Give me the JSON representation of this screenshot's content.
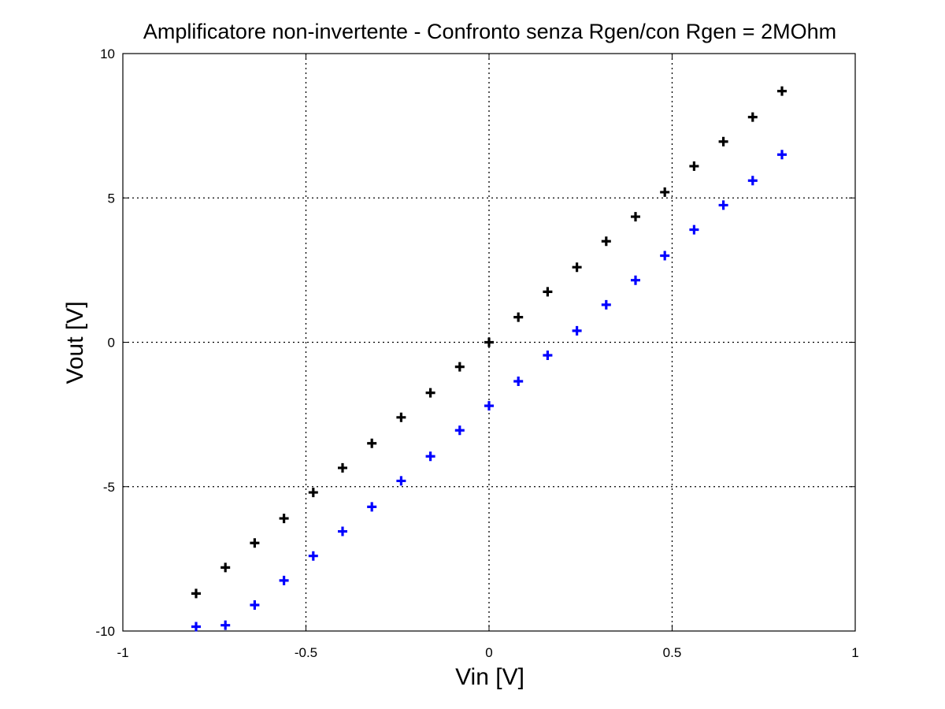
{
  "chart_data": {
    "type": "scatter",
    "title": "Amplificatore non-invertente - Confronto senza Rgen/con Rgen = 2MOhm",
    "xlabel": "Vin [V]",
    "ylabel": "Vout [V]",
    "xlim": [
      -1,
      1
    ],
    "ylim": [
      -10,
      10
    ],
    "xticks": [
      -1,
      -0.5,
      0,
      0.5,
      1
    ],
    "xtick_labels": [
      "-1",
      "-0.5",
      "0",
      "0.5",
      "1"
    ],
    "yticks": [
      -10,
      -5,
      0,
      5,
      10
    ],
    "ytick_labels": [
      "-10",
      "-5",
      "0",
      "5",
      "10"
    ],
    "grid": true,
    "marker": "plus",
    "series": [
      {
        "color": "#000000",
        "x": [
          -0.8,
          -0.72,
          -0.64,
          -0.56,
          -0.48,
          -0.4,
          -0.32,
          -0.24,
          -0.16,
          -0.08,
          0,
          0.08,
          0.16,
          0.24,
          0.32,
          0.4,
          0.48,
          0.56,
          0.64,
          0.72,
          0.8
        ],
        "y": [
          -8.7,
          -7.8,
          -6.95,
          -6.1,
          -5.2,
          -4.35,
          -3.5,
          -2.6,
          -1.75,
          -0.85,
          0,
          0.87,
          1.75,
          2.6,
          3.5,
          4.35,
          5.2,
          6.1,
          6.95,
          7.8,
          8.7
        ]
      },
      {
        "color": "#0000ff",
        "x": [
          -0.8,
          -0.72,
          -0.64,
          -0.56,
          -0.48,
          -0.4,
          -0.32,
          -0.24,
          -0.16,
          -0.08,
          0,
          0.08,
          0.16,
          0.24,
          0.32,
          0.4,
          0.48,
          0.56,
          0.64,
          0.72,
          0.8
        ],
        "y": [
          -9.85,
          -9.8,
          -9.1,
          -8.25,
          -7.4,
          -6.55,
          -5.7,
          -4.8,
          -3.95,
          -3.05,
          -2.2,
          -1.35,
          -0.45,
          0.4,
          1.3,
          2.15,
          3.0,
          3.9,
          4.75,
          5.6,
          6.5
        ]
      }
    ]
  }
}
